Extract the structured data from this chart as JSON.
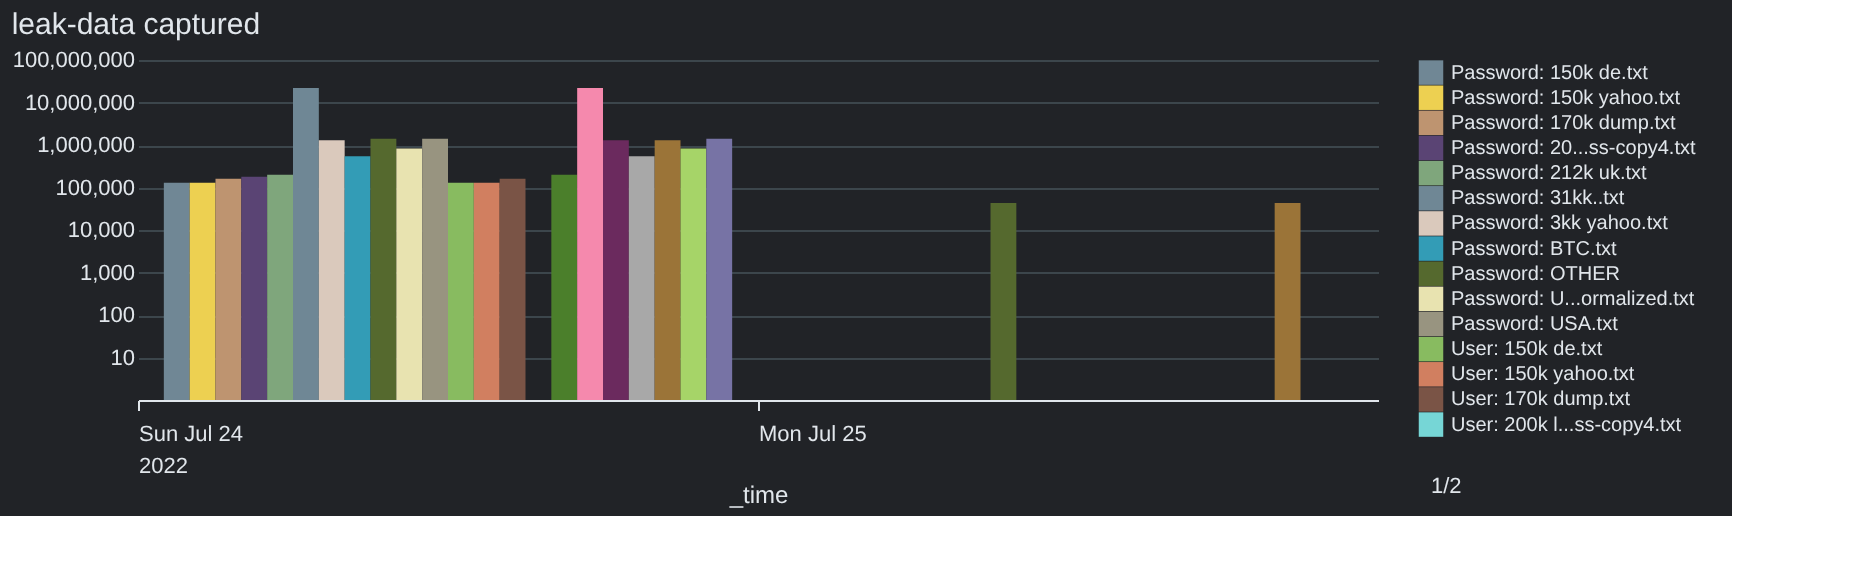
{
  "chart_data": {
    "type": "bar",
    "title": "leak-data captured",
    "xlabel": "_time",
    "xlim": [
      "2022-07-24T00:00",
      "2022-07-26T00:00"
    ],
    "xticks": [
      {
        "value": "2022-07-24T00:00",
        "label": "Sun Jul 24\n2022"
      },
      {
        "value": "2022-07-25T00:00",
        "label": "Mon Jul 25"
      }
    ],
    "ylim": [
      1,
      100000000
    ],
    "yticks": [
      10,
      100,
      {
        "value": 1000,
        "label": "1,000"
      },
      {
        "value": 10000,
        "label": "10,000"
      },
      {
        "value": 100000,
        "label": "100,000"
      },
      {
        "value": 1000000,
        "label": "1,000,000"
      },
      {
        "value": 10000000,
        "label": "10,000,000"
      },
      {
        "value": 100000000,
        "label": "100,000,000"
      }
    ],
    "log": true,
    "grid": "y",
    "legend": "right",
    "annotations": [
      "1/2"
    ],
    "series": [
      {
        "name": "Password: 150k de.txt",
        "color": "#708795",
        "x": [
          "2022-07-24T01:00"
        ],
        "values": [
          130000
        ]
      },
      {
        "name": "Password: 150k yahoo.txt",
        "color": "#edd051",
        "x": [
          "2022-07-24T02:00"
        ],
        "values": [
          130000
        ]
      },
      {
        "name": "Password: 170k dump.txt",
        "color": "#be9470",
        "x": [
          "2022-07-24T03:00"
        ],
        "values": [
          160000
        ]
      },
      {
        "name": "Password: 20...ss-copy4.txt",
        "color": "#5a4474",
        "x": [
          "2022-07-24T04:00"
        ],
        "values": [
          180000
        ]
      },
      {
        "name": "Password: 212k uk.txt",
        "color": "#7fa67c",
        "x": [
          "2022-07-24T05:00"
        ],
        "values": [
          200000
        ]
      },
      {
        "name": "Password: 31kk..txt",
        "color": "#6f8795",
        "x": [
          "2022-07-24T06:00"
        ],
        "values": [
          22000000
        ]
      },
      {
        "name": "Password: 3kk yahoo.txt",
        "color": "#dac9bc",
        "x": [
          "2022-07-24T07:00"
        ],
        "values": [
          1300000
        ]
      },
      {
        "name": "Password: BTC.txt",
        "color": "#339cb6",
        "x": [
          "2022-07-24T08:00"
        ],
        "values": [
          540000
        ]
      },
      {
        "name": "Password: OTHER",
        "color": "#55692e",
        "x": [
          "2022-07-24T09:00",
          "2022-07-25T09:00"
        ],
        "values": [
          1400000,
          43000
        ]
      },
      {
        "name": "Password: U...ormalized.txt",
        "color": "#e8e3b0",
        "x": [
          "2022-07-24T10:00"
        ],
        "values": [
          830000
        ]
      },
      {
        "name": "Password: USA.txt",
        "color": "#989480",
        "x": [
          "2022-07-24T11:00"
        ],
        "values": [
          1400000
        ]
      },
      {
        "name": "User: 150k de.txt",
        "color": "#88bb60",
        "x": [
          "2022-07-24T12:00"
        ],
        "values": [
          130000
        ]
      },
      {
        "name": "User: 150k yahoo.txt",
        "color": "#d17f60",
        "x": [
          "2022-07-24T13:00"
        ],
        "values": [
          130000
        ]
      },
      {
        "name": "User: 170k dump.txt",
        "color": "#7a5446",
        "x": [
          "2022-07-24T14:00"
        ],
        "values": [
          160000
        ]
      },
      {
        "name": "User: 200k l...ss-copy4.txt",
        "color": "#76d6d6"
      },
      {
        "color": "#4b7f2b",
        "x": [
          "2022-07-24T16:00"
        ],
        "values": [
          200000
        ]
      },
      {
        "color": "#f589ad",
        "x": [
          "2022-07-24T17:00"
        ],
        "values": [
          22000000
        ]
      },
      {
        "color": "#6b2a5e",
        "x": [
          "2022-07-24T18:00"
        ],
        "values": [
          1300000
        ]
      },
      {
        "color": "#a8a8a8",
        "x": [
          "2022-07-24T19:00"
        ],
        "values": [
          540000
        ]
      },
      {
        "color": "#9b7438",
        "x": [
          "2022-07-24T20:00",
          "2022-07-25T20:00"
        ],
        "values": [
          1300000,
          43000
        ]
      },
      {
        "color": "#a6d468",
        "x": [
          "2022-07-24T21:00"
        ],
        "values": [
          830000
        ]
      },
      {
        "color": "#7773a5",
        "x": [
          "2022-07-24T22:00"
        ],
        "values": [
          1400000
        ]
      }
    ]
  }
}
